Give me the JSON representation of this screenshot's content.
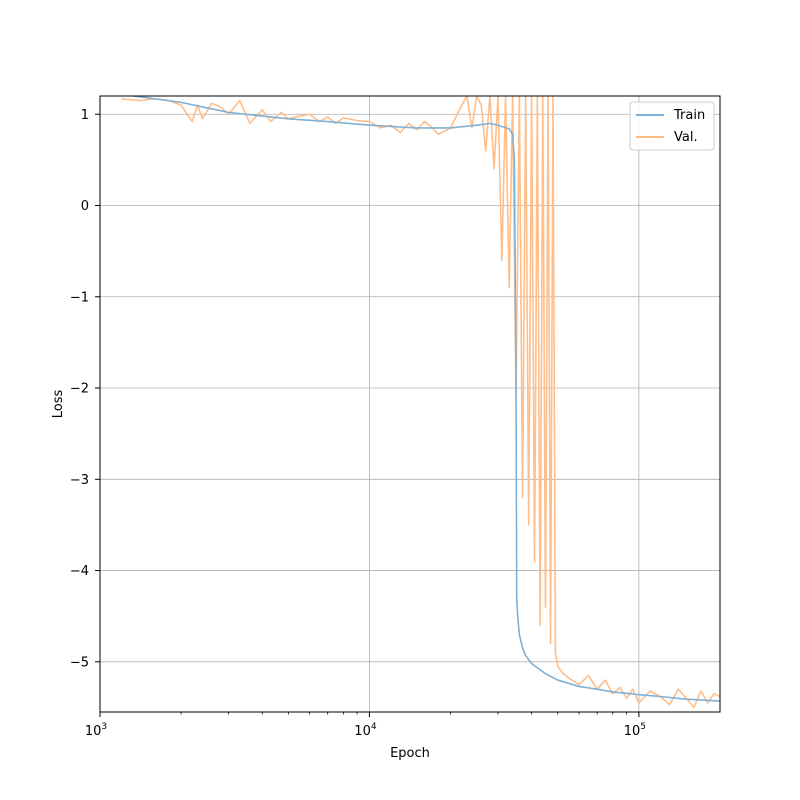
{
  "chart_data": {
    "type": "line",
    "title": "",
    "xlabel": "Epoch",
    "ylabel": "Loss",
    "xscale": "log",
    "xlim": [
      1000,
      200000
    ],
    "ylim": [
      -5.55,
      1.2
    ],
    "grid": true,
    "legend_position": "top-right",
    "x_ticks": [
      {
        "value": 1000,
        "base": "10",
        "exp": "3"
      },
      {
        "value": 10000,
        "base": "10",
        "exp": "4"
      },
      {
        "value": 100000,
        "base": "10",
        "exp": "5"
      }
    ],
    "y_ticks": [
      {
        "value": 1,
        "label": "1"
      },
      {
        "value": 0,
        "label": "0"
      },
      {
        "value": -1,
        "label": "−1"
      },
      {
        "value": -2,
        "label": "−2"
      },
      {
        "value": -3,
        "label": "−3"
      },
      {
        "value": -4,
        "label": "−4"
      },
      {
        "value": -5,
        "label": "−5"
      }
    ],
    "series": [
      {
        "name": "Train",
        "color": "#7fb0d6",
        "x": [
          1000,
          1500,
          2000,
          3000,
          5000,
          7000,
          10000,
          15000,
          20000,
          25000,
          28000,
          30000,
          33000,
          34000,
          34500,
          35000,
          35200,
          35500,
          36000,
          37000,
          38000,
          40000,
          45000,
          50000,
          60000,
          70000,
          80000,
          100000,
          120000,
          150000,
          200000
        ],
        "values": [
          1.25,
          1.18,
          1.13,
          1.02,
          0.95,
          0.92,
          0.88,
          0.85,
          0.85,
          0.88,
          0.9,
          0.88,
          0.84,
          0.78,
          0.5,
          -2.0,
          -4.3,
          -4.5,
          -4.7,
          -4.85,
          -4.93,
          -5.02,
          -5.13,
          -5.2,
          -5.27,
          -5.3,
          -5.33,
          -5.36,
          -5.38,
          -5.41,
          -5.43
        ]
      },
      {
        "name": "Val.",
        "color": "#ffbb84",
        "x": [
          1200,
          1400,
          1600,
          1800,
          2000,
          2200,
          2300,
          2400,
          2600,
          2800,
          3000,
          3300,
          3600,
          4000,
          4300,
          4700,
          5000,
          5500,
          6000,
          6500,
          7000,
          7500,
          8000,
          9000,
          10000,
          11000,
          12000,
          13000,
          14000,
          15000,
          16000,
          17000,
          18000,
          20000,
          22000,
          23000,
          24000,
          25000,
          26000,
          27000,
          28000,
          29000,
          30000,
          31000,
          32000,
          33000,
          34000,
          35000,
          36000,
          37000,
          38000,
          39000,
          40000,
          41000,
          42000,
          43000,
          44000,
          45000,
          46000,
          47000,
          48000,
          49000,
          50000,
          52000,
          55000,
          60000,
          65000,
          70000,
          75000,
          80000,
          85000,
          90000,
          95000,
          100000,
          110000,
          120000,
          130000,
          140000,
          150000,
          160000,
          170000,
          180000,
          190000,
          200000
        ],
        "values": [
          1.17,
          1.15,
          1.17,
          1.15,
          1.1,
          0.92,
          1.1,
          0.95,
          1.12,
          1.08,
          1.0,
          1.15,
          0.9,
          1.05,
          0.92,
          1.02,
          0.95,
          0.98,
          1.0,
          0.92,
          0.97,
          0.9,
          0.96,
          0.93,
          0.92,
          0.85,
          0.88,
          0.8,
          0.9,
          0.83,
          0.92,
          0.86,
          0.78,
          0.85,
          1.1,
          1.2,
          0.85,
          1.2,
          1.1,
          0.6,
          1.2,
          0.4,
          1.2,
          -0.6,
          1.2,
          -0.9,
          1.2,
          -2.1,
          1.2,
          -3.2,
          1.2,
          -3.5,
          1.2,
          -3.9,
          1.2,
          -4.6,
          1.2,
          -4.4,
          1.2,
          -4.8,
          1.2,
          -4.9,
          -5.05,
          -5.12,
          -5.18,
          -5.25,
          -5.15,
          -5.3,
          -5.2,
          -5.35,
          -5.28,
          -5.4,
          -5.3,
          -5.45,
          -5.32,
          -5.38,
          -5.47,
          -5.3,
          -5.4,
          -5.5,
          -5.32,
          -5.45,
          -5.35,
          -5.38
        ]
      }
    ]
  }
}
